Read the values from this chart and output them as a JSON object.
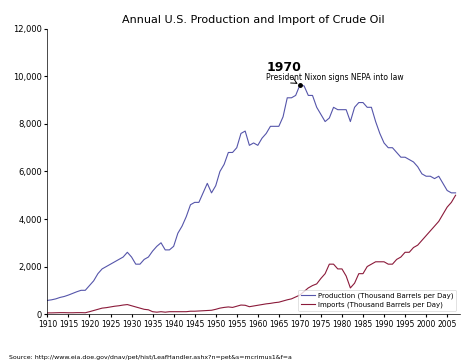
{
  "title": "Annual U.S. Production and Import of Crude Oil",
  "source": "Source: http://www.eia.doe.gov/dnav/pet/hist/LeafHandler.ashx?n=pet&s=mcrimus1&f=a",
  "ylim": [
    0,
    12000
  ],
  "xlim": [
    1910,
    2008
  ],
  "yticks": [
    0,
    2000,
    4000,
    6000,
    8000,
    10000,
    12000
  ],
  "xticks": [
    1910,
    1915,
    1920,
    1925,
    1930,
    1935,
    1940,
    1945,
    1950,
    1955,
    1960,
    1965,
    1970,
    1975,
    1980,
    1985,
    1990,
    1995,
    2000,
    2005
  ],
  "production_color": "#5555aa",
  "imports_color": "#8B1A3A",
  "annotation_year": 1970,
  "annotation_value": 9637,
  "annotation_text_bold": "1970",
  "annotation_text": "President Nixon signs NEPA into law",
  "legend_production": "Production (Thousand Barrels per Day)",
  "legend_imports": "Imports (Thousand Barrels per Day)",
  "production": {
    "years": [
      1910,
      1911,
      1912,
      1913,
      1914,
      1915,
      1916,
      1917,
      1918,
      1919,
      1920,
      1921,
      1922,
      1923,
      1924,
      1925,
      1926,
      1927,
      1928,
      1929,
      1930,
      1931,
      1932,
      1933,
      1934,
      1935,
      1936,
      1937,
      1938,
      1939,
      1940,
      1941,
      1942,
      1943,
      1944,
      1945,
      1946,
      1947,
      1948,
      1949,
      1950,
      1951,
      1952,
      1953,
      1954,
      1955,
      1956,
      1957,
      1958,
      1959,
      1960,
      1961,
      1962,
      1963,
      1964,
      1965,
      1966,
      1967,
      1968,
      1969,
      1970,
      1971,
      1972,
      1973,
      1974,
      1975,
      1976,
      1977,
      1978,
      1979,
      1980,
      1981,
      1982,
      1983,
      1984,
      1985,
      1986,
      1987,
      1988,
      1989,
      1990,
      1991,
      1992,
      1993,
      1994,
      1995,
      1996,
      1997,
      1998,
      1999,
      2000,
      2001,
      2002,
      2003,
      2004,
      2005,
      2006,
      2007
    ],
    "values": [
      575,
      600,
      640,
      700,
      740,
      800,
      870,
      940,
      1000,
      1000,
      1200,
      1400,
      1700,
      1900,
      2000,
      2100,
      2200,
      2300,
      2400,
      2600,
      2400,
      2100,
      2100,
      2300,
      2400,
      2650,
      2850,
      3000,
      2700,
      2700,
      2850,
      3400,
      3700,
      4100,
      4600,
      4700,
      4700,
      5100,
      5500,
      5100,
      5400,
      6000,
      6300,
      6800,
      6800,
      7000,
      7600,
      7700,
      7100,
      7200,
      7100,
      7400,
      7600,
      7900,
      7900,
      7900,
      8300,
      9100,
      9100,
      9200,
      9637,
      9600,
      9200,
      9200,
      8700,
      8400,
      8100,
      8250,
      8700,
      8600,
      8600,
      8600,
      8100,
      8700,
      8900,
      8900,
      8700,
      8700,
      8100,
      7600,
      7200,
      7000,
      7000,
      6800,
      6600,
      6600,
      6500,
      6400,
      6200,
      5900,
      5800,
      5800,
      5700,
      5800,
      5500,
      5200,
      5100,
      5100
    ]
  },
  "imports": {
    "years": [
      1910,
      1911,
      1912,
      1913,
      1914,
      1915,
      1916,
      1917,
      1918,
      1919,
      1920,
      1921,
      1922,
      1923,
      1924,
      1925,
      1926,
      1927,
      1928,
      1929,
      1930,
      1931,
      1932,
      1933,
      1934,
      1935,
      1936,
      1937,
      1938,
      1939,
      1940,
      1941,
      1942,
      1943,
      1944,
      1945,
      1946,
      1947,
      1948,
      1949,
      1950,
      1951,
      1952,
      1953,
      1954,
      1955,
      1956,
      1957,
      1958,
      1959,
      1960,
      1961,
      1962,
      1963,
      1964,
      1965,
      1966,
      1967,
      1968,
      1969,
      1970,
      1971,
      1972,
      1973,
      1974,
      1975,
      1976,
      1977,
      1978,
      1979,
      1980,
      1981,
      1982,
      1983,
      1984,
      1985,
      1986,
      1987,
      1988,
      1989,
      1990,
      1991,
      1992,
      1993,
      1994,
      1995,
      1996,
      1997,
      1998,
      1999,
      2000,
      2001,
      2002,
      2003,
      2004,
      2005,
      2006,
      2007
    ],
    "values": [
      50,
      50,
      55,
      60,
      60,
      55,
      55,
      60,
      60,
      55,
      100,
      150,
      200,
      250,
      270,
      300,
      330,
      350,
      380,
      400,
      350,
      300,
      250,
      200,
      180,
      100,
      80,
      100,
      80,
      100,
      100,
      100,
      100,
      100,
      120,
      120,
      130,
      140,
      150,
      160,
      200,
      250,
      280,
      300,
      280,
      330,
      380,
      370,
      310,
      340,
      370,
      400,
      430,
      450,
      480,
      500,
      550,
      600,
      640,
      720,
      800,
      950,
      1100,
      1200,
      1270,
      1500,
      1700,
      2100,
      2100,
      1900,
      1900,
      1600,
      1100,
      1300,
      1700,
      1700,
      2000,
      2100,
      2200,
      2200,
      2200,
      2100,
      2100,
      2300,
      2400,
      2600,
      2600,
      2800,
      2900,
      3100,
      3300,
      3500,
      3700,
      3900,
      4200,
      4500,
      4700,
      5000
    ]
  },
  "figwidth": 4.74,
  "figheight": 3.61,
  "dpi": 100
}
